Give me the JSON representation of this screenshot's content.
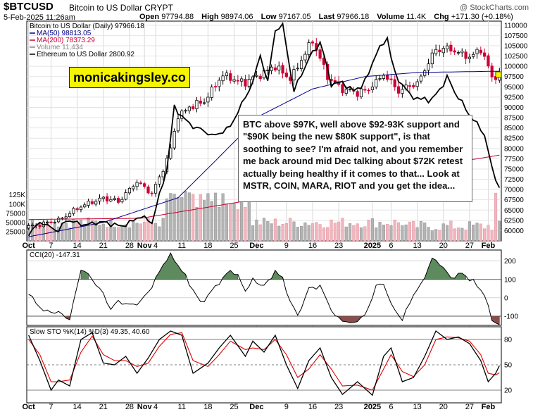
{
  "header": {
    "symbol": "$BTCUSD",
    "subtitle": "Bitcoin to US Dollar  CRYPT",
    "credit": "@ StockCharts.com",
    "datetime": "5-Feb-2025 11:26am",
    "quote": [
      {
        "label": "Open",
        "value": "97794.88"
      },
      {
        "label": "High",
        "value": "98974.06"
      },
      {
        "label": "Low",
        "value": "97167.05"
      },
      {
        "label": "Last",
        "value": "97966.18"
      },
      {
        "label": "Volume",
        "value": "11.4K"
      },
      {
        "label": "Chg",
        "value": "+171.30 (+0.18%)"
      }
    ]
  },
  "brand": "monicakingsley.co",
  "annotation": "BTC above $97K, well above $92-93K support and \"$90K being the new $80K support\", is that soothing to see? I'm afraid not, and you remember me back around mid Dec talking about $72K retest actually being healthy if it comes to that... Look at MSTR, COIN, MARA, RIOT and you get the idea...",
  "colors": {
    "up": "#000000",
    "down": "#cc0033",
    "ma50": "#00008b",
    "ma200": "#cc0033",
    "eth": "#000000",
    "vol_up": "#b3b3b3",
    "vol_down": "#f2b5be",
    "osc_fill": "#5e8b5e",
    "osc_fill_low": "#8b4e4e",
    "sto_d": "#e00000"
  },
  "chart_data": [
    {
      "type": "candlestick",
      "legend_title": "Bitcoin to US Dollar (Daily) 97966.18",
      "legend": [
        {
          "name": "MA(50) 98813.05",
          "color": "#00008b"
        },
        {
          "name": "MA(200) 78373.29",
          "color": "#cc0033"
        },
        {
          "name": "Volume 11,434",
          "color": "#888888"
        },
        {
          "name": "Ethereum to US Dollar 2800.92",
          "color": "#000000"
        }
      ],
      "x_ticks": [
        "Oct",
        "7",
        "14",
        "21",
        "28",
        "Nov",
        "4",
        "11",
        "18",
        "25",
        "Dec",
        "9",
        "16",
        "23",
        "2025",
        "6",
        "13",
        "20",
        "27",
        "Feb"
      ],
      "x_tick_days": [
        0,
        6,
        13,
        20,
        27,
        31,
        34,
        41,
        48,
        55,
        61,
        69,
        76,
        83,
        92,
        97,
        104,
        111,
        118,
        123
      ],
      "y_right_ticks": [
        60000,
        62500,
        65000,
        67500,
        70000,
        72500,
        75000,
        77500,
        80000,
        82500,
        85000,
        87500,
        90000,
        92500,
        95000,
        97500,
        100000,
        102500,
        105000,
        107500,
        110000
      ],
      "ylim": [
        57500,
        111000
      ],
      "volume_axis_ticks": [
        "25000",
        "50000",
        "75000",
        "100K",
        "125K"
      ],
      "volume_axis_values": [
        25000,
        50000,
        75000,
        100000,
        125000
      ],
      "volume_max": 180000,
      "close_keys": [
        [
          0,
          61000
        ],
        [
          8,
          62500
        ],
        [
          14,
          66000
        ],
        [
          20,
          68000
        ],
        [
          24,
          67000
        ],
        [
          29,
          72000
        ],
        [
          33,
          69000
        ],
        [
          36,
          75000
        ],
        [
          38,
          80000
        ],
        [
          40,
          88000
        ],
        [
          43,
          90000
        ],
        [
          47,
          91500
        ],
        [
          52,
          98000
        ],
        [
          58,
          96000
        ],
        [
          61,
          97500
        ],
        [
          66,
          100000
        ],
        [
          70,
          97000
        ],
        [
          76,
          106000
        ],
        [
          80,
          97500
        ],
        [
          84,
          94500
        ],
        [
          88,
          93500
        ],
        [
          91,
          94500
        ],
        [
          95,
          98000
        ],
        [
          99,
          94000
        ],
        [
          104,
          96000
        ],
        [
          109,
          104000
        ],
        [
          113,
          104500
        ],
        [
          118,
          102000
        ],
        [
          121,
          104500
        ],
        [
          124,
          97500
        ],
        [
          126,
          97966
        ]
      ],
      "ma50_keys": [
        [
          0,
          58500
        ],
        [
          20,
          62000
        ],
        [
          40,
          68000
        ],
        [
          50,
          77000
        ],
        [
          62,
          88000
        ],
        [
          76,
          94500
        ],
        [
          90,
          97500
        ],
        [
          104,
          98500
        ],
        [
          126,
          98813
        ]
      ],
      "ma200_keys": [
        [
          0,
          62700
        ],
        [
          30,
          63000
        ],
        [
          50,
          66000
        ],
        [
          80,
          70500
        ],
        [
          110,
          76000
        ],
        [
          126,
          78373
        ]
      ],
      "eth_keys": [
        [
          0,
          59000
        ],
        [
          3,
          62000
        ],
        [
          8,
          60000
        ],
        [
          10,
          62500
        ],
        [
          15,
          61500
        ],
        [
          20,
          62000
        ],
        [
          25,
          61000
        ],
        [
          30,
          63500
        ],
        [
          33,
          62000
        ],
        [
          37,
          75000
        ],
        [
          39,
          90000
        ],
        [
          43,
          86000
        ],
        [
          47,
          84000
        ],
        [
          50,
          83000
        ],
        [
          54,
          85500
        ],
        [
          56,
          89000
        ],
        [
          60,
          96000
        ],
        [
          62,
          103000
        ],
        [
          64,
          96000
        ],
        [
          66,
          109000
        ],
        [
          68,
          110000
        ],
        [
          71,
          94000
        ],
        [
          75,
          102000
        ],
        [
          78,
          106000
        ],
        [
          81,
          96000
        ],
        [
          84,
          96000
        ],
        [
          87,
          94000
        ],
        [
          90,
          96000
        ],
        [
          93,
          103000
        ],
        [
          96,
          107000
        ],
        [
          98,
          98000
        ],
        [
          102,
          93000
        ],
        [
          105,
          92000
        ],
        [
          108,
          92000
        ],
        [
          112,
          97000
        ],
        [
          116,
          91000
        ],
        [
          119,
          87000
        ],
        [
          122,
          83500
        ],
        [
          124,
          75000
        ],
        [
          126,
          70500
        ]
      ]
    },
    {
      "type": "line",
      "title": "CCI(20) -147.31",
      "y_ticks": [
        200,
        100,
        0,
        -100
      ],
      "ylim": [
        -150,
        260
      ],
      "keys": [
        [
          0,
          20
        ],
        [
          4,
          -70
        ],
        [
          8,
          -80
        ],
        [
          11,
          -120
        ],
        [
          14,
          160
        ],
        [
          17,
          100
        ],
        [
          20,
          20
        ],
        [
          22,
          -60
        ],
        [
          24,
          -20
        ],
        [
          27,
          -40
        ],
        [
          30,
          -20
        ],
        [
          33,
          60
        ],
        [
          36,
          180
        ],
        [
          38,
          230
        ],
        [
          40,
          180
        ],
        [
          43,
          80
        ],
        [
          46,
          -30
        ],
        [
          50,
          60
        ],
        [
          54,
          150
        ],
        [
          56,
          120
        ],
        [
          58,
          40
        ],
        [
          60,
          100
        ],
        [
          62,
          70
        ],
        [
          64,
          80
        ],
        [
          66,
          150
        ],
        [
          68,
          100
        ],
        [
          70,
          -20
        ],
        [
          72,
          -100
        ],
        [
          75,
          50
        ],
        [
          78,
          60
        ],
        [
          82,
          -100
        ],
        [
          86,
          -140
        ],
        [
          90,
          -100
        ],
        [
          93,
          60
        ],
        [
          95,
          80
        ],
        [
          97,
          -40
        ],
        [
          100,
          -120
        ],
        [
          103,
          20
        ],
        [
          105,
          70
        ],
        [
          108,
          210
        ],
        [
          110,
          190
        ],
        [
          113,
          110
        ],
        [
          116,
          130
        ],
        [
          119,
          90
        ],
        [
          122,
          20
        ],
        [
          124,
          -120
        ],
        [
          126,
          -147
        ]
      ]
    },
    {
      "type": "line",
      "title": "Slow STO %K(14) %D(3) 49.35, 40.60",
      "y_ticks": [
        80,
        50,
        20
      ],
      "ylim": [
        5,
        95
      ],
      "series_names": [
        "%K(14)",
        "%D(3)"
      ],
      "k_keys": [
        [
          0,
          85
        ],
        [
          3,
          55
        ],
        [
          6,
          20
        ],
        [
          8,
          32
        ],
        [
          11,
          25
        ],
        [
          14,
          80
        ],
        [
          17,
          88
        ],
        [
          20,
          52
        ],
        [
          23,
          50
        ],
        [
          26,
          60
        ],
        [
          29,
          40
        ],
        [
          32,
          58
        ],
        [
          35,
          80
        ],
        [
          38,
          90
        ],
        [
          41,
          85
        ],
        [
          44,
          40
        ],
        [
          48,
          52
        ],
        [
          51,
          70
        ],
        [
          54,
          85
        ],
        [
          58,
          60
        ],
        [
          60,
          78
        ],
        [
          63,
          65
        ],
        [
          66,
          85
        ],
        [
          69,
          50
        ],
        [
          72,
          22
        ],
        [
          75,
          55
        ],
        [
          78,
          70
        ],
        [
          81,
          35
        ],
        [
          84,
          15
        ],
        [
          88,
          30
        ],
        [
          92,
          14
        ],
        [
          95,
          60
        ],
        [
          97,
          70
        ],
        [
          100,
          30
        ],
        [
          103,
          35
        ],
        [
          106,
          60
        ],
        [
          109,
          90
        ],
        [
          112,
          80
        ],
        [
          115,
          83
        ],
        [
          118,
          75
        ],
        [
          121,
          55
        ],
        [
          123,
          30
        ],
        [
          125,
          40
        ],
        [
          126,
          49
        ]
      ],
      "d_keys": [
        [
          0,
          80
        ],
        [
          3,
          62
        ],
        [
          6,
          30
        ],
        [
          8,
          30
        ],
        [
          11,
          32
        ],
        [
          14,
          65
        ],
        [
          17,
          84
        ],
        [
          20,
          62
        ],
        [
          23,
          55
        ],
        [
          26,
          55
        ],
        [
          29,
          48
        ],
        [
          32,
          52
        ],
        [
          35,
          72
        ],
        [
          38,
          86
        ],
        [
          41,
          88
        ],
        [
          44,
          55
        ],
        [
          48,
          48
        ],
        [
          51,
          62
        ],
        [
          54,
          78
        ],
        [
          58,
          68
        ],
        [
          60,
          70
        ],
        [
          63,
          68
        ],
        [
          66,
          80
        ],
        [
          69,
          62
        ],
        [
          72,
          35
        ],
        [
          75,
          45
        ],
        [
          78,
          62
        ],
        [
          81,
          45
        ],
        [
          84,
          25
        ],
        [
          88,
          26
        ],
        [
          92,
          20
        ],
        [
          95,
          45
        ],
        [
          97,
          62
        ],
        [
          100,
          42
        ],
        [
          103,
          36
        ],
        [
          106,
          50
        ],
        [
          109,
          80
        ],
        [
          112,
          83
        ],
        [
          115,
          82
        ],
        [
          118,
          78
        ],
        [
          121,
          62
        ],
        [
          123,
          40
        ],
        [
          125,
          38
        ],
        [
          126,
          40.6
        ]
      ]
    }
  ]
}
